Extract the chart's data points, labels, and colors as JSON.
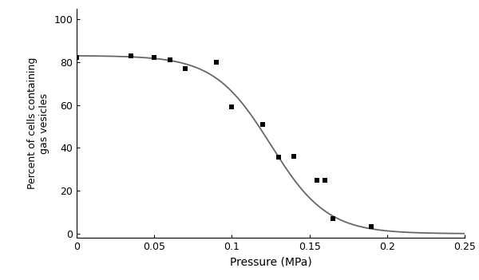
{
  "scatter_x": [
    0.0,
    0.035,
    0.05,
    0.06,
    0.07,
    0.09,
    0.1,
    0.12,
    0.13,
    0.14,
    0.155,
    0.16,
    0.165,
    0.19
  ],
  "scatter_y": [
    82,
    83,
    82,
    81,
    77,
    80,
    59,
    51,
    35.5,
    36,
    25,
    25,
    7,
    3.5
  ],
  "marker": "s",
  "marker_color": "black",
  "marker_size": 5,
  "line_color": "#666666",
  "line_width": 1.3,
  "xlabel": "Pressure (MPa)",
  "ylabel": "Percent of cells containing gas vesicles",
  "xlim": [
    0,
    0.25
  ],
  "ylim": [
    -2,
    105
  ],
  "yticks": [
    0,
    20,
    40,
    60,
    80,
    100
  ],
  "xticks": [
    0,
    0.05,
    0.1,
    0.15,
    0.2,
    0.25
  ],
  "xtick_labels": [
    "0",
    "0.05",
    "0.1",
    "0.15",
    "0.2",
    "0.25"
  ],
  "xlabel_fontsize": 10,
  "ylabel_fontsize": 9,
  "tick_fontsize": 9,
  "background_color": "#ffffff"
}
